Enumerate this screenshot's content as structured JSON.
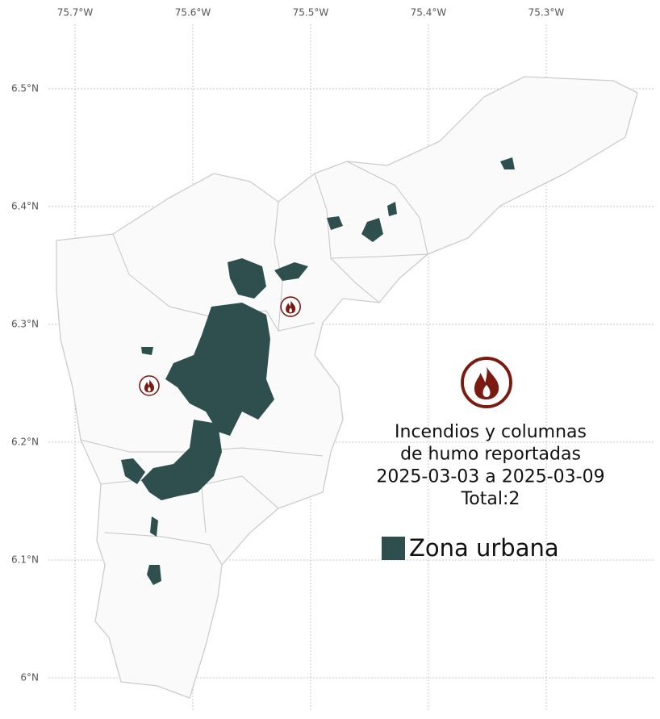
{
  "map": {
    "xlim": [
      -75.7637,
      -75.2034
    ],
    "ylim": [
      5.9678,
      6.5753
    ],
    "xticks": [
      {
        "value": -75.7,
        "label": "75.7°W"
      },
      {
        "value": -75.6,
        "label": "75.6°W"
      },
      {
        "value": -75.5,
        "label": "75.5°W"
      },
      {
        "value": -75.4,
        "label": "75.4°W"
      },
      {
        "value": -75.3,
        "label": "75.3°W"
      }
    ],
    "yticks": [
      {
        "value": 6.5,
        "label": "6.5°N"
      },
      {
        "value": 6.4,
        "label": "6.4°N"
      },
      {
        "value": 6.3,
        "label": "6.3°N"
      },
      {
        "value": 6.2,
        "label": "6.2°N"
      },
      {
        "value": 6.1,
        "label": "6.1°N"
      },
      {
        "value": 6,
        "label": "6°N"
      }
    ],
    "fires": [
      {
        "lon": -75.637,
        "lat": 6.248
      },
      {
        "lon": -75.517,
        "lat": 6.315
      }
    ],
    "fire_color": "#7a1a10",
    "legend": {
      "title": [
        "Incendios y columnas",
        "de humo reportadas",
        "2025-03-03 a 2025-03-09",
        "Total:2"
      ],
      "label": "Zona urbana",
      "color": "#2f4f4f"
    }
  }
}
